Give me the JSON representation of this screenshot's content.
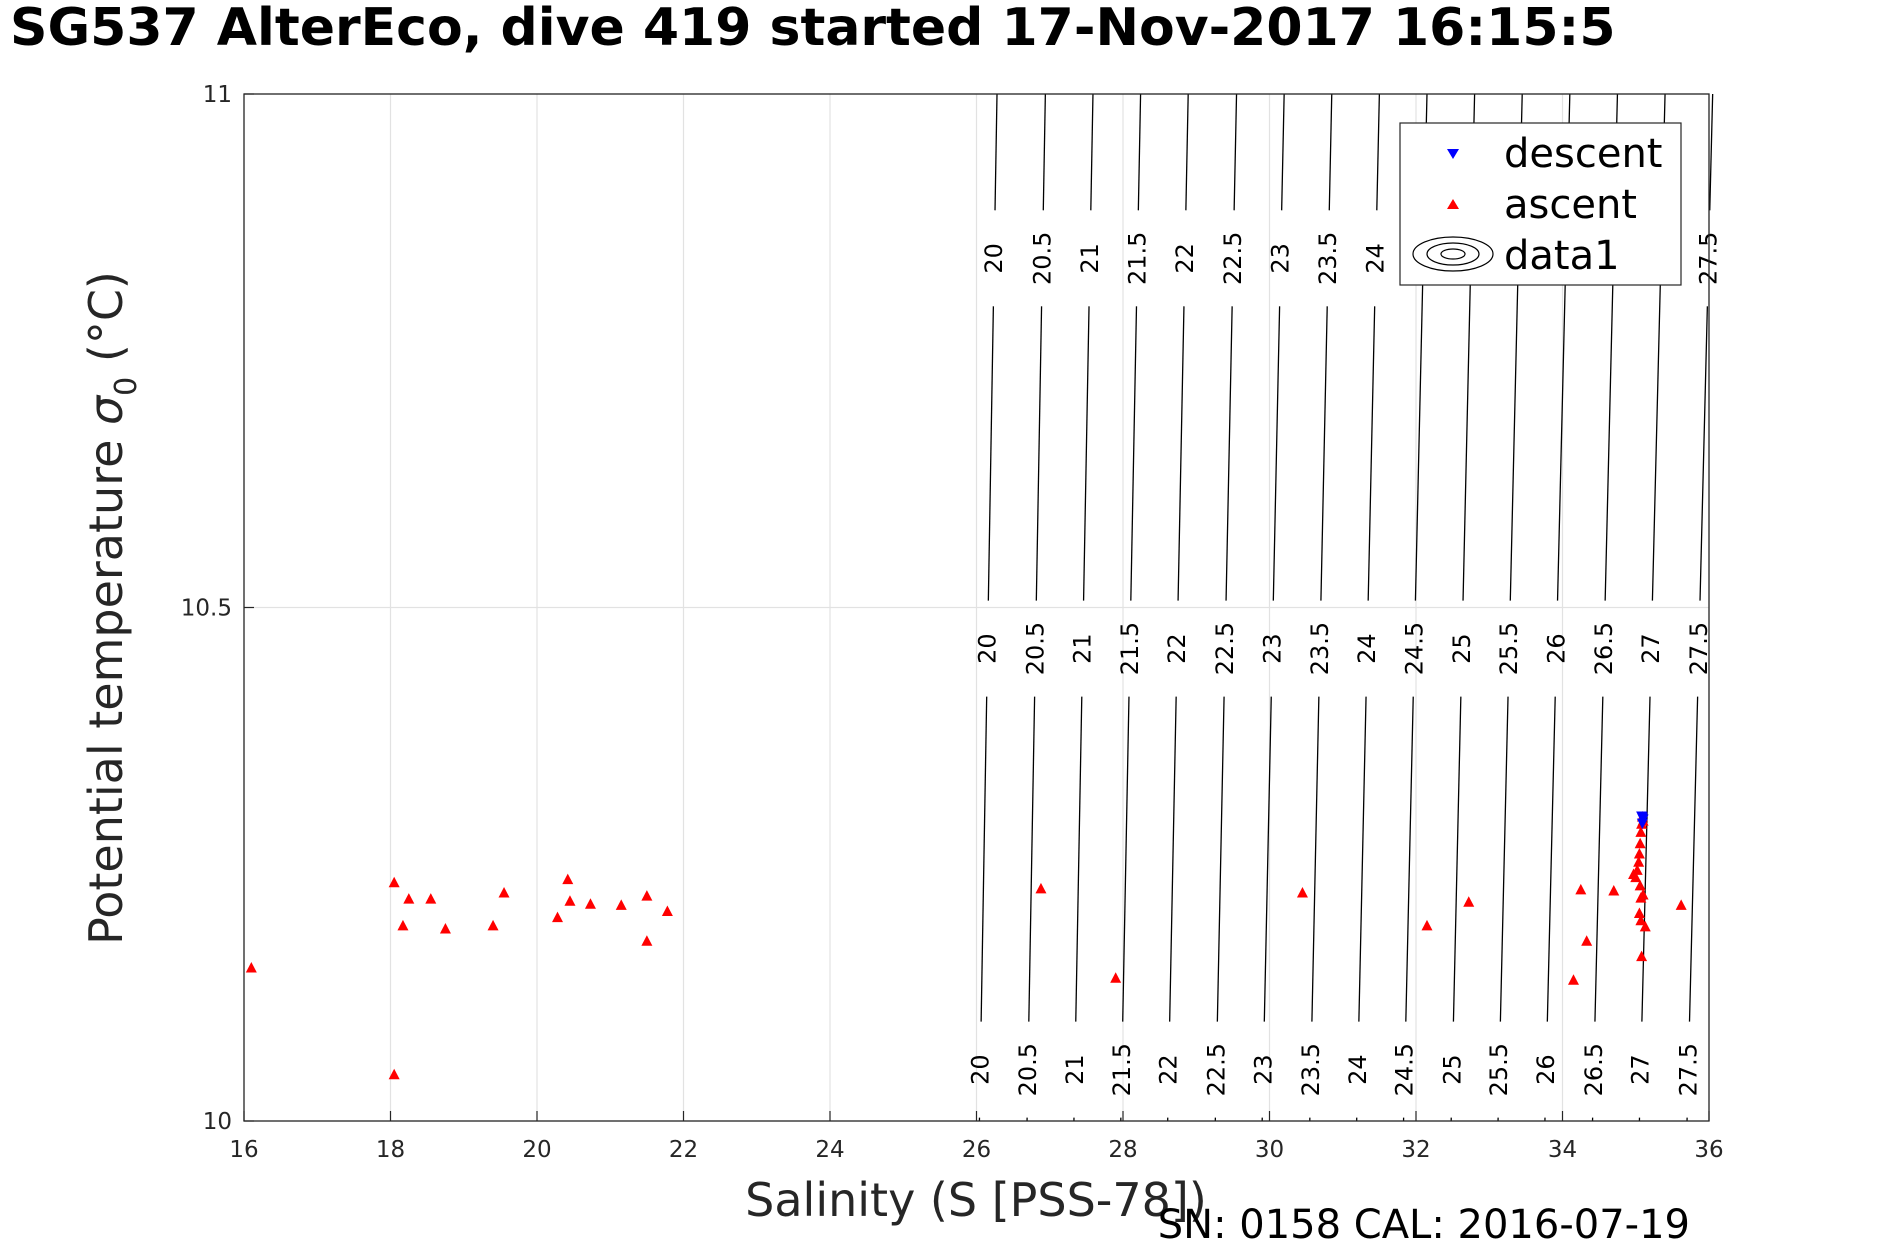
{
  "chart_data": {
    "type": "scatter",
    "title": "SG537 AlterEco, dive 419 started 17-Nov-2017 16:15:5",
    "xlabel": "Salinity (S [PSS-78])",
    "ylabel_main": "Potential temperature ",
    "ylabel_sigma": "σ",
    "ylabel_sub": "0",
    "ylabel_unit": " (°C)",
    "xlim": [
      16,
      36
    ],
    "ylim": [
      10,
      11
    ],
    "xticks": [
      16,
      18,
      20,
      22,
      24,
      26,
      28,
      30,
      32,
      34,
      36
    ],
    "yticks": [
      10,
      10.5,
      11
    ],
    "grid": true,
    "legend_position": "top-right",
    "legend": [
      "descent",
      "ascent",
      "data1"
    ],
    "series": [
      {
        "name": "descent",
        "marker": "triangle-down",
        "color": "#0000ff",
        "points": [
          [
            35.08,
            10.297
          ],
          [
            35.09,
            10.296
          ],
          [
            35.09,
            10.29
          ],
          [
            35.1,
            10.294
          ]
        ]
      },
      {
        "name": "ascent",
        "marker": "triangle-up",
        "color": "#ff0000",
        "points": [
          [
            16.1,
            10.149
          ],
          [
            18.05,
            10.232
          ],
          [
            18.05,
            10.045
          ],
          [
            18.17,
            10.19
          ],
          [
            18.25,
            10.216
          ],
          [
            18.55,
            10.216
          ],
          [
            18.75,
            10.187
          ],
          [
            19.4,
            10.19
          ],
          [
            19.55,
            10.222
          ],
          [
            20.28,
            10.198
          ],
          [
            20.42,
            10.235
          ],
          [
            20.45,
            10.214
          ],
          [
            20.73,
            10.211
          ],
          [
            21.15,
            10.21
          ],
          [
            21.5,
            10.219
          ],
          [
            21.5,
            10.175
          ],
          [
            21.78,
            10.204
          ],
          [
            26.88,
            10.226
          ],
          [
            27.9,
            10.139
          ],
          [
            30.45,
            10.222
          ],
          [
            32.15,
            10.19
          ],
          [
            32.72,
            10.213
          ],
          [
            34.15,
            10.137
          ],
          [
            34.25,
            10.225
          ],
          [
            34.33,
            10.175
          ],
          [
            34.7,
            10.224
          ],
          [
            34.97,
            10.24
          ],
          [
            35.0,
            10.237
          ],
          [
            35.02,
            10.244
          ],
          [
            35.04,
            10.252
          ],
          [
            35.05,
            10.26
          ],
          [
            35.06,
            10.27
          ],
          [
            35.07,
            10.281
          ],
          [
            35.08,
            10.289
          ],
          [
            35.09,
            10.296
          ],
          [
            35.1,
            10.292
          ],
          [
            35.06,
            10.229
          ],
          [
            35.07,
            10.217
          ],
          [
            35.05,
            10.202
          ],
          [
            35.07,
            10.195
          ],
          [
            35.08,
            10.16
          ],
          [
            35.1,
            10.22
          ],
          [
            35.13,
            10.189
          ],
          [
            35.62,
            10.21
          ]
        ]
      }
    ],
    "isopycnals": {
      "name": "data1",
      "levels": [
        "20",
        "20.5",
        "21",
        "21.5",
        "22",
        "22.5",
        "23",
        "23.5",
        "24",
        "24.5",
        "25",
        "25.5",
        "26",
        "26.5",
        "27",
        "27.5"
      ],
      "line_salinity": {
        "20": [
          26.04,
          26.28
        ],
        "20.5": [
          26.69,
          26.94
        ],
        "21": [
          27.33,
          27.59
        ],
        "21.5": [
          27.97,
          28.24
        ],
        "22": [
          28.61,
          28.89
        ],
        "22.5": [
          29.26,
          29.55
        ],
        "23": [
          29.9,
          30.2
        ],
        "23.5": [
          30.55,
          30.85
        ],
        "24": [
          31.19,
          31.5
        ],
        "24.5": [
          31.83,
          32.15
        ],
        "25": [
          32.48,
          32.8
        ],
        "25.5": [
          33.12,
          33.45
        ],
        "26": [
          33.76,
          34.1
        ],
        "26.5": [
          34.41,
          34.75
        ],
        "27": [
          35.05,
          35.4
        ],
        "27.5": [
          35.7,
          36.05
        ]
      },
      "label_rows_temperature": [
        10.05,
        10.46,
        10.84
      ],
      "labels_per_row": [
        [
          "20",
          "20.5",
          "21",
          "21.5",
          "22",
          "22.5",
          "23",
          "23.5",
          "24",
          "24.5",
          "25",
          "25.5",
          "26",
          "26.5",
          "27",
          "27.5"
        ],
        [
          "20",
          "20.5",
          "21",
          "21.5",
          "22",
          "22.5",
          "23",
          "23.5",
          "24",
          "24.5",
          "25",
          "25.5",
          "26",
          "26.5",
          "27",
          "27.5"
        ],
        [
          "20",
          "20.5",
          "21",
          "21.5",
          "22",
          "22.5",
          "23",
          "23.5",
          "24",
          "27.5"
        ]
      ]
    }
  },
  "footer": "SN: 0158  CAL: 2016-07-19"
}
